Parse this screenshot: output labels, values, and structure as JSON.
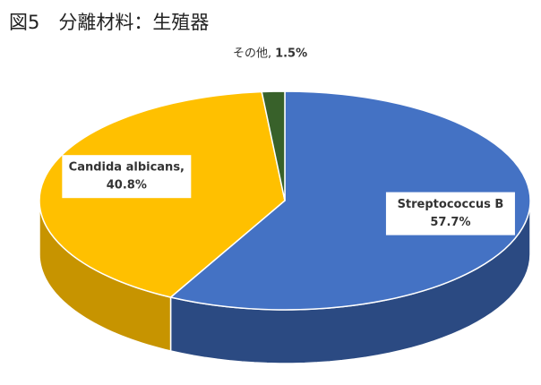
{
  "chart_data": {
    "type": "pie",
    "title": "図5　分離材料：生殖器",
    "categories": [
      "Streptococcus B",
      "Candida albicans,",
      "その他,"
    ],
    "values": [
      57.7,
      40.8,
      1.5
    ],
    "value_labels": [
      "57.7%",
      "40.8%",
      "1.5%"
    ],
    "colors": [
      "#4472c4",
      "#ffc000",
      "#38612a"
    ],
    "side_colors": [
      "#2b4a82",
      "#c79400",
      "#24401b"
    ],
    "three_d": true
  }
}
